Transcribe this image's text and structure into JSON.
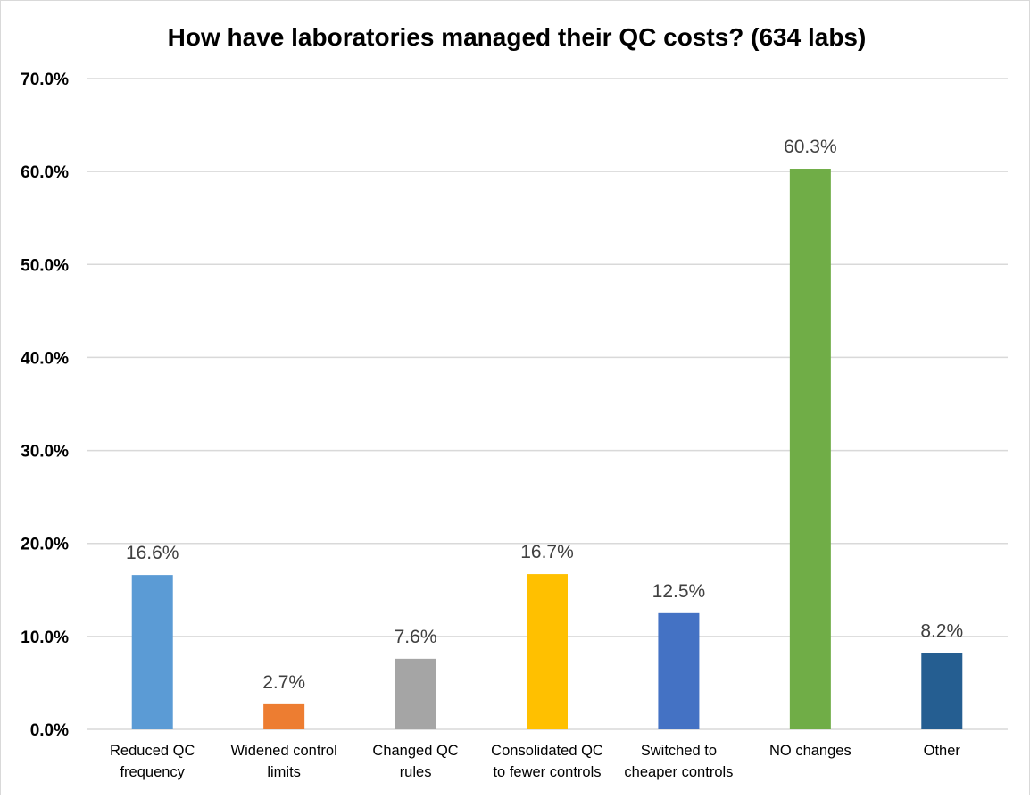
{
  "chart_data": {
    "type": "bar",
    "title": "How have laboratories managed their QC costs? (634 labs)",
    "xlabel": "",
    "ylabel": "",
    "ylim": [
      0,
      70
    ],
    "yticks": [
      "0.0%",
      "10.0%",
      "20.0%",
      "30.0%",
      "40.0%",
      "50.0%",
      "60.0%",
      "70.0%"
    ],
    "grid": true,
    "legend": "none",
    "categories": [
      [
        "Reduced QC",
        "frequency"
      ],
      [
        "Widened control",
        "limits"
      ],
      [
        "Changed QC",
        "rules"
      ],
      [
        "Consolidated QC",
        "to fewer controls"
      ],
      [
        "Switched to",
        "cheaper controls"
      ],
      [
        "NO changes"
      ],
      [
        "Other"
      ]
    ],
    "values": [
      16.6,
      2.7,
      7.6,
      16.7,
      12.5,
      60.3,
      8.2
    ],
    "data_labels": [
      "16.6%",
      "2.7%",
      "7.6%",
      "16.7%",
      "12.5%",
      "60.3%",
      "8.2%"
    ],
    "colors": [
      "#5B9BD5",
      "#ED7D31",
      "#A5A5A5",
      "#FFC000",
      "#4472C4",
      "#70AD47",
      "#255E91"
    ]
  }
}
